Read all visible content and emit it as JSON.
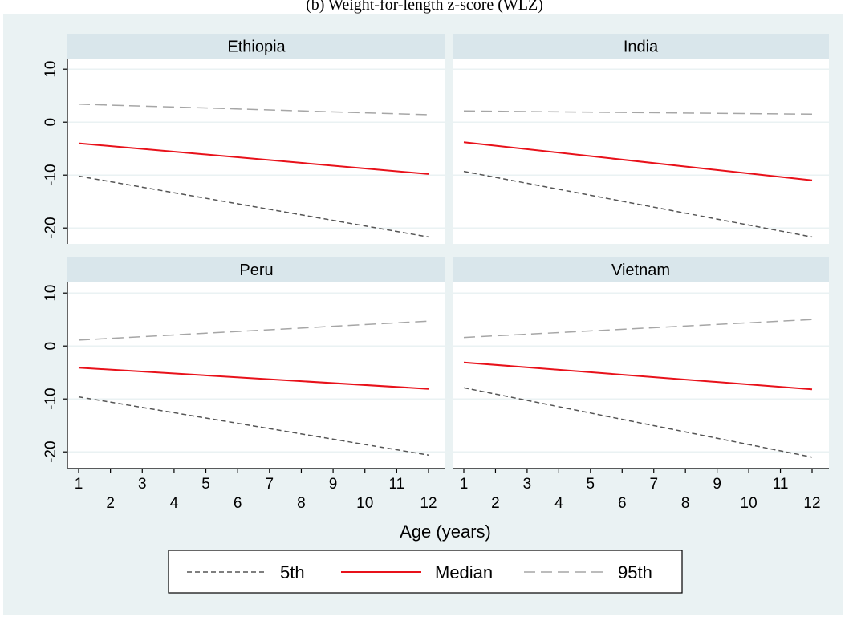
{
  "chart_data": {
    "type": "line",
    "title": "(b) Weight-for-length z-score (WLZ)",
    "xlabel": "Age (years)",
    "ylabel": "",
    "xlim": [
      1,
      12
    ],
    "ylim": [
      -23,
      12
    ],
    "xticks_top": [
      "1",
      "3",
      "5",
      "7",
      "9",
      "11"
    ],
    "xticks_bottom": [
      "2",
      "4",
      "6",
      "8",
      "10",
      "12"
    ],
    "yticks": [
      "10",
      "0",
      "-10",
      "-20"
    ],
    "ytick_values": [
      10,
      0,
      -10,
      -20
    ],
    "grid": true,
    "legend_position": "bottom",
    "legend": [
      "5th",
      "Median",
      "95th"
    ],
    "series_styles": [
      {
        "name": "5th",
        "color": "#555555",
        "dash": "short"
      },
      {
        "name": "Median",
        "color": "#e8111a",
        "dash": "solid"
      },
      {
        "name": "95th",
        "color": "#a6a6a6",
        "dash": "long"
      }
    ],
    "panels": [
      {
        "name": "Ethiopia",
        "series": [
          {
            "name": "5th",
            "x": [
              1,
              12
            ],
            "y": [
              -10.2,
              -21.7
            ]
          },
          {
            "name": "Median",
            "x": [
              1,
              12
            ],
            "y": [
              -4.0,
              -9.8
            ]
          },
          {
            "name": "95th",
            "x": [
              1,
              12
            ],
            "y": [
              3.4,
              1.4
            ]
          }
        ]
      },
      {
        "name": "India",
        "series": [
          {
            "name": "5th",
            "x": [
              1,
              12
            ],
            "y": [
              -9.3,
              -21.7
            ]
          },
          {
            "name": "Median",
            "x": [
              1,
              12
            ],
            "y": [
              -3.8,
              -11.0
            ]
          },
          {
            "name": "95th",
            "x": [
              1,
              12
            ],
            "y": [
              2.1,
              1.5
            ]
          }
        ]
      },
      {
        "name": "Peru",
        "series": [
          {
            "name": "5th",
            "x": [
              1,
              12
            ],
            "y": [
              -9.6,
              -20.6
            ]
          },
          {
            "name": "Median",
            "x": [
              1,
              12
            ],
            "y": [
              -4.1,
              -8.1
            ]
          },
          {
            "name": "95th",
            "x": [
              1,
              12
            ],
            "y": [
              1.1,
              4.7
            ]
          }
        ]
      },
      {
        "name": "Vietnam",
        "series": [
          {
            "name": "5th",
            "x": [
              1,
              12
            ],
            "y": [
              -7.9,
              -21.0
            ]
          },
          {
            "name": "Median",
            "x": [
              1,
              12
            ],
            "y": [
              -3.1,
              -8.2
            ]
          },
          {
            "name": "95th",
            "x": [
              1,
              12
            ],
            "y": [
              1.6,
              5.0
            ]
          }
        ]
      }
    ]
  }
}
